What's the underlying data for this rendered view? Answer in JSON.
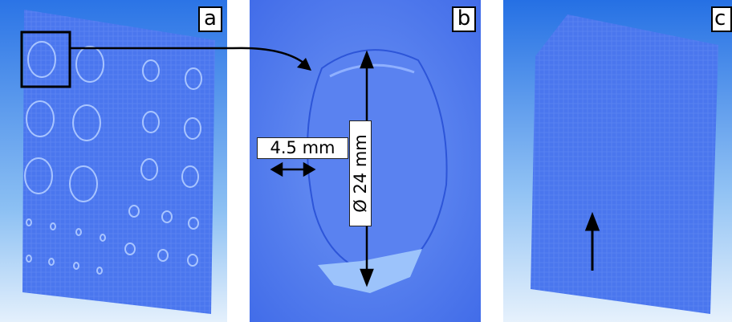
{
  "panels": [
    {
      "id": "a",
      "label": "a"
    },
    {
      "id": "b",
      "label": "b"
    },
    {
      "id": "c",
      "label": "c"
    }
  ],
  "annotations": {
    "thickness": "4.5 mm",
    "diameter": "Ø 24 mm"
  },
  "colors": {
    "surface": "#4a76ee",
    "surface_light": "#6f98f5",
    "background_top": "#1f6fe3",
    "background_bottom": "#dfeefc",
    "annotation_line": "#000000"
  }
}
